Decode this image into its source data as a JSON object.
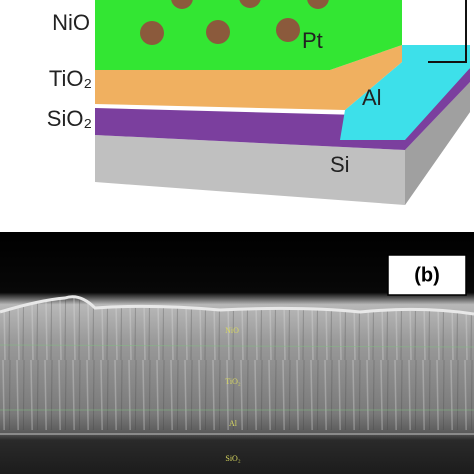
{
  "schematic": {
    "nio": "NiO",
    "pt": "Pt",
    "tio2": "TiO₂",
    "sio2": "SiO₂",
    "al": "Al",
    "si": "Si"
  },
  "sem": {
    "panel_label": "(b)",
    "layers": [
      "NiO",
      "TiO₂",
      "Al",
      "SiO₂"
    ]
  }
}
